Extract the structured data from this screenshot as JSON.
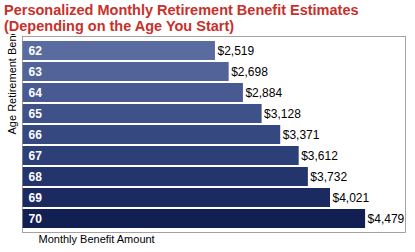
{
  "chart_data": {
    "type": "bar",
    "orientation": "horizontal",
    "title": "Personalized Monthly Retirement Benefit Estimates\n(Depending on the Age You Start)",
    "y_label": "Age Retirement Benefits Start",
    "x_label": "Monthly Benefit Amount",
    "categories": [
      "62",
      "63",
      "64",
      "65",
      "66",
      "67",
      "68",
      "69",
      "70"
    ],
    "values": [
      2519,
      2698,
      2884,
      3128,
      3371,
      3612,
      3732,
      4021,
      4479
    ],
    "value_labels": [
      "$2,519",
      "$2,698",
      "$2,884",
      "$3,128",
      "$3,371",
      "$3,612",
      "$3,732",
      "$4,021",
      "$4,479"
    ],
    "colors": [
      "#5a6b9f",
      "#516399",
      "#485a91",
      "#3f5189",
      "#364880",
      "#2d3f77",
      "#24356d",
      "#1b2b62",
      "#121f53"
    ],
    "xlim": [
      0,
      5000
    ],
    "data_labels": true,
    "tick_labels": "y",
    "grid": false
  }
}
